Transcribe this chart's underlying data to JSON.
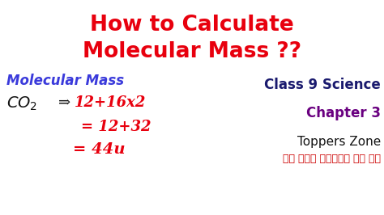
{
  "bg_color": "#ffffff",
  "title_line1": "How to Calculate",
  "title_line2": "Molecular Mass ??",
  "title_color": "#e8000e",
  "title_fontsize": 19,
  "mol_mass_label": "Molecular Mass",
  "mol_mass_color": "#3a3adb",
  "mol_mass_fontsize": 12,
  "co2_color": "#111111",
  "co2_fontsize": 12,
  "arrow_text": "⇒",
  "eq1": "12+16x2",
  "eq2": "= 12+32",
  "eq3": "= 44u",
  "eq_color": "#e8000e",
  "eq_fontsize": 11,
  "class_text": "Class 9 Science",
  "class_color": "#1a1a6e",
  "class_fontsize": 12,
  "chapter_text": "Chapter 3",
  "chapter_color": "#6a0080",
  "chapter_fontsize": 12,
  "toppers_text": "Toppers Zone",
  "toppers_color": "#111111",
  "toppers_fontsize": 11,
  "hindi_text": "एक कदम सफलता की ओर",
  "hindi_color": "#cc0000",
  "hindi_fontsize": 9
}
